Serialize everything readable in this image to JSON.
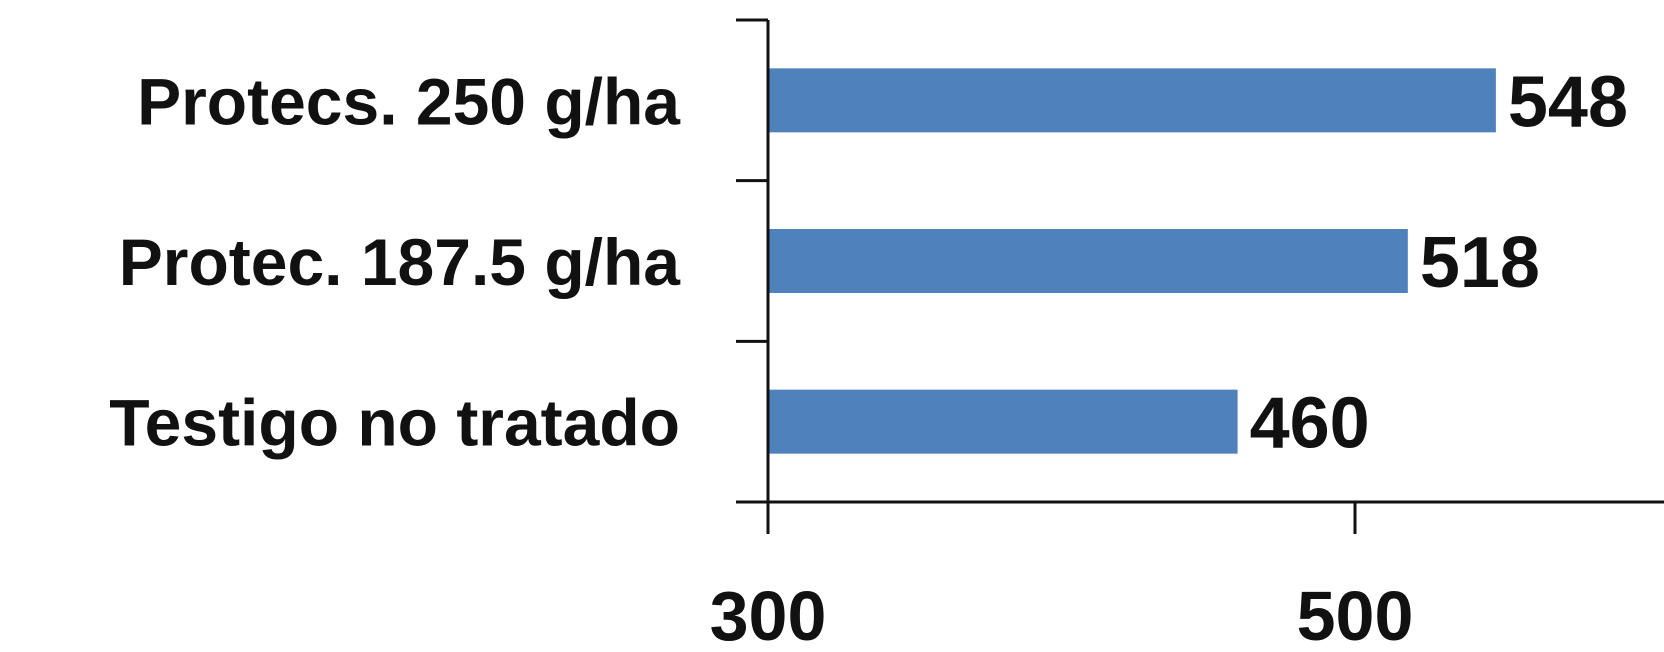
{
  "chart_data": {
    "type": "bar",
    "orientation": "horizontal",
    "categories": [
      "Protecs. 250 g/ha",
      "Protec. 187.5 g/ha",
      "Testigo no tratado"
    ],
    "values": [
      548,
      518,
      460
    ],
    "data_labels": [
      "548",
      "518",
      "460"
    ],
    "x_ticks": [
      300,
      500
    ],
    "x_tick_labels": [
      "300",
      "500"
    ],
    "xlim": [
      300,
      600
    ],
    "title": "",
    "xlabel": "",
    "ylabel": "",
    "grid": false,
    "legend": "none",
    "bar_color": "#4F81BD"
  }
}
